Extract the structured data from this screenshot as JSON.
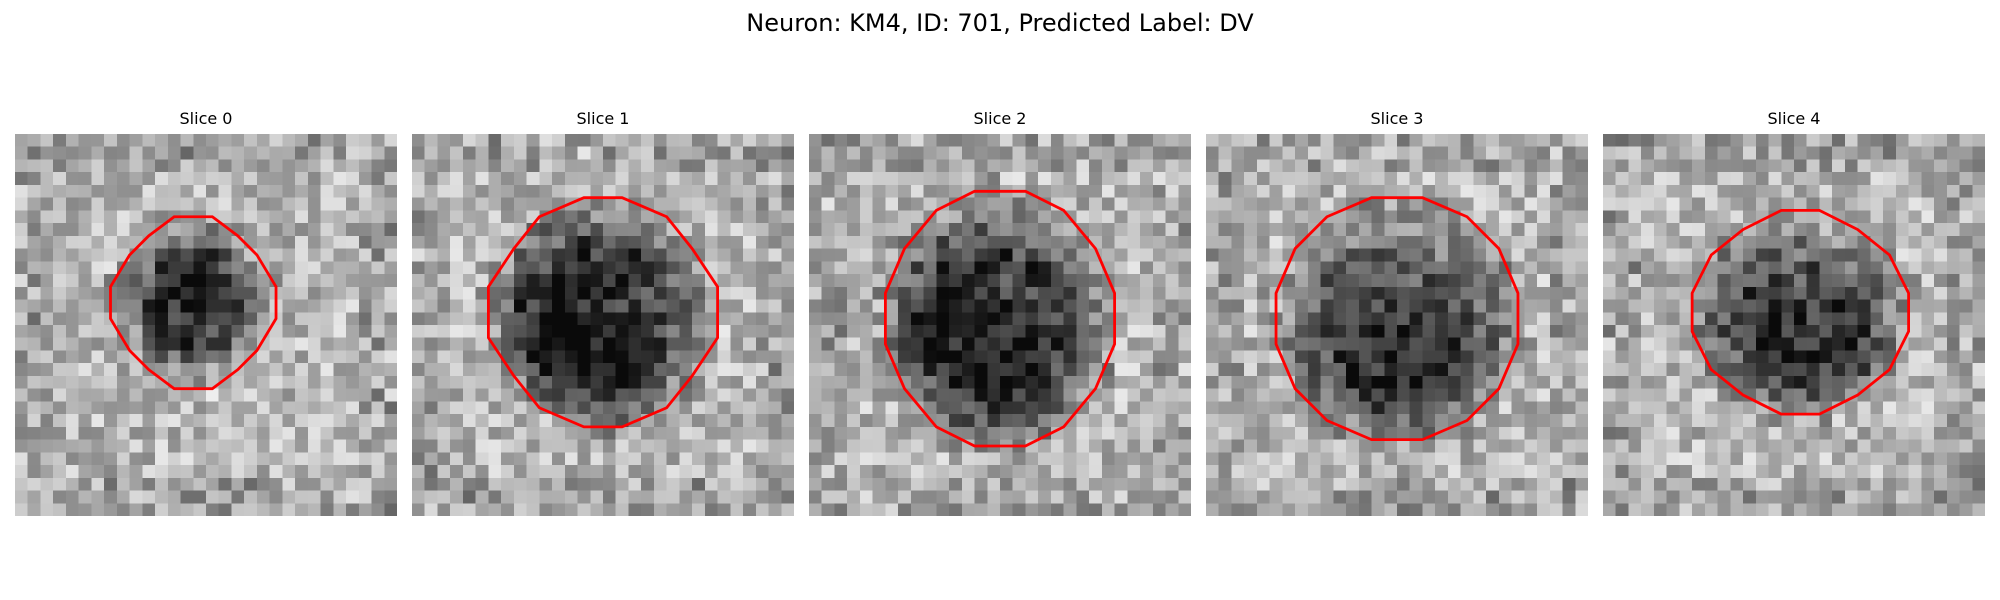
{
  "title": "Neuron: KM4, ID: 701, Predicted Label: DV",
  "outline_color": "#ff0000",
  "panels": [
    {
      "label": "Slice 0"
    },
    {
      "label": "Slice 1"
    },
    {
      "label": "Slice 2"
    },
    {
      "label": "Slice 3"
    },
    {
      "label": "Slice 4"
    }
  ]
}
